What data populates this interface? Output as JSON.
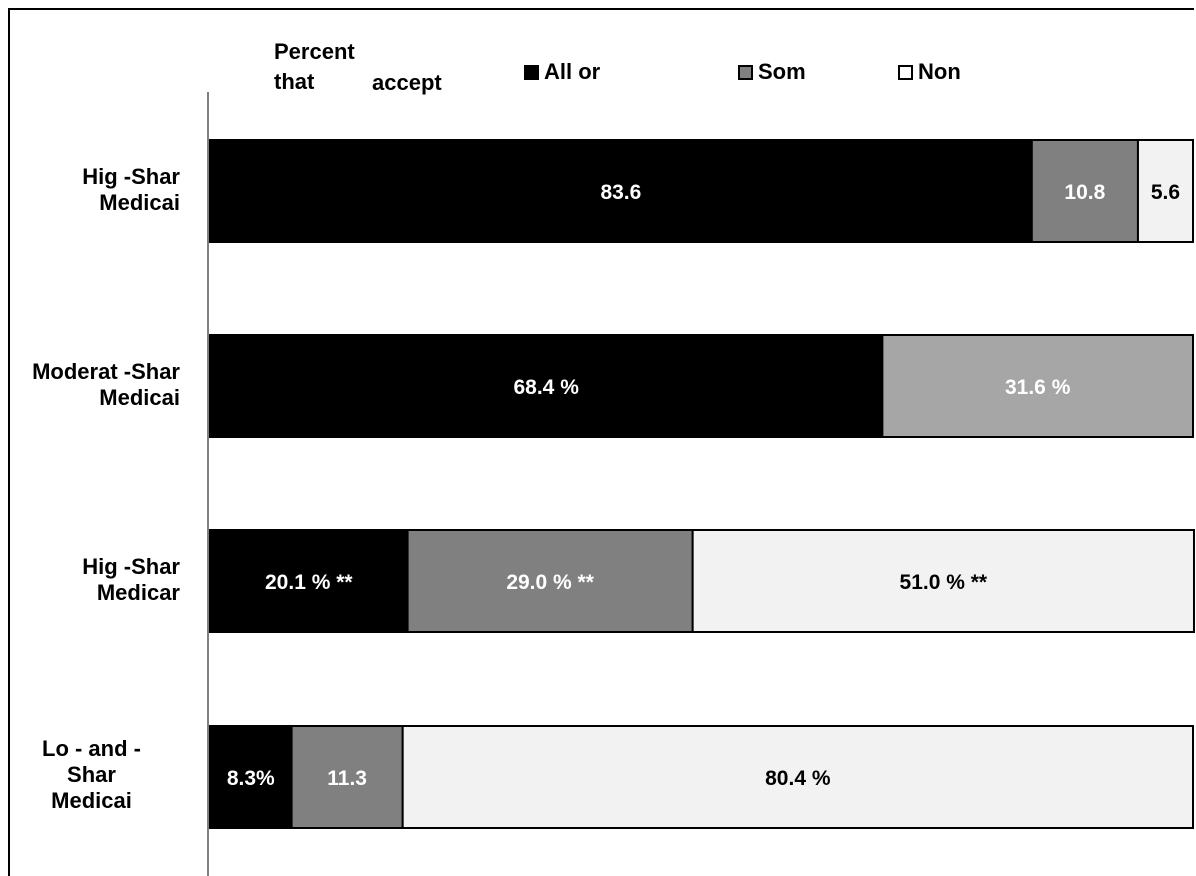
{
  "chart_data": {
    "type": "bar",
    "orientation": "horizontal",
    "stacked": true,
    "xlim": [
      0,
      100
    ],
    "grid": false,
    "legend_placement": "top",
    "header_text_1": "Percent",
    "header_text_2": "that",
    "header_text_3": "accept",
    "categories": [
      {
        "line1": "Hig -Shar",
        "line2": "Medicai",
        "line3": ""
      },
      {
        "line1": "Moderat -Shar",
        "line2": "Medicai",
        "line3": ""
      },
      {
        "line1": "Hig -Shar",
        "line2": "Medicar",
        "line3": ""
      },
      {
        "line1": "Lo  - and   -",
        "line2": "Shar",
        "line3": "Medicai"
      }
    ],
    "series": [
      {
        "name": "All or",
        "color": "#000000",
        "text_color": "#ffffff",
        "values": [
          83.6,
          68.4,
          20.1,
          8.3
        ],
        "labels": [
          "83.6",
          "68.4 %",
          "20.1 % **",
          "8.3%"
        ]
      },
      {
        "name": "Som",
        "color": "#808080",
        "text_color": "#ffffff",
        "values": [
          10.8,
          31.6,
          29.0,
          11.3
        ],
        "labels": [
          "10.8",
          "31.6 %",
          "29.0 % **",
          "11.3"
        ],
        "overrides": {
          "1": "#a6a6a6"
        }
      },
      {
        "name": "Non",
        "color": "#f2f2f2",
        "text_color": "#000000",
        "values": [
          5.6,
          0,
          51.0,
          80.4
        ],
        "labels": [
          "5.6",
          "",
          "51.0 % **",
          "80.4 %"
        ]
      }
    ]
  }
}
